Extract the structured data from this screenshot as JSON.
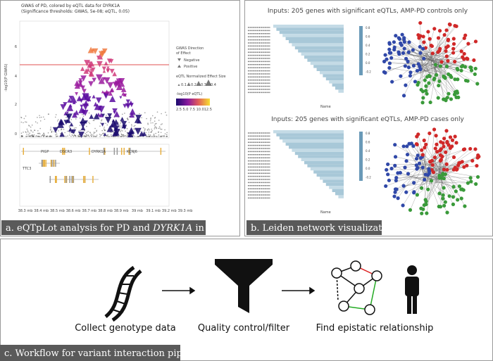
{
  "panel_a": {
    "title": "GWAS of PD, colored by eQTL data for DYRK1A",
    "subtitle": "(Significance thresholds: GWAS, 5e-08; eQTL, 0.05)",
    "y_axis_label": "-log10(P GWAS)",
    "y_ticks": [
      "0",
      "2",
      "4",
      "6"
    ],
    "legend_direction_title": [
      "GWAS Direction",
      "of Effect"
    ],
    "legend_direction_items": [
      "Negative",
      "Positive"
    ],
    "legend_size_title": "eQTL Normalized Effect Size",
    "legend_size_items": [
      "0.1",
      "0.2",
      "0.3",
      "0.4"
    ],
    "legend_color_title": "-log10(P eQTL)",
    "legend_color_ticks": "2.5 5.0 7.5 10.012.5",
    "genes": [
      "PIGP",
      "DSCR3",
      "TTC3",
      "DYRK1A",
      "KCNJ6"
    ],
    "x_ticks": [
      "38.3 mb",
      "38.4 mb",
      "38.5 mb",
      "38.6 mb",
      "38.7 mb",
      "38.8 mb",
      "38.9 mb",
      "39 mb",
      "39.1 mb",
      "39.2 mb",
      "39.3 mb"
    ],
    "caption": [
      "a. eQTpLot analysis for PD and ",
      "DYRK1A",
      " in brain"
    ]
  },
  "panel_b": {
    "top_title": "Inputs: 205 genes with significant eQTLs, AMP-PD controls only",
    "bottom_title": "Inputs: 205 genes with significant eQTLs, AMP-PD cases only",
    "axis_label": "Name",
    "colorbar_ticks": [
      "0.8",
      "0.6",
      "0.4",
      "0.2",
      "0.0",
      "-0.2"
    ],
    "caption": "b. Leiden network visualizations"
  },
  "panel_c": {
    "steps": [
      "Collect genotype data",
      "Quality control/filter",
      "Find epistatic relationship"
    ],
    "caption": "c. Workflow for variant interaction pipeline"
  }
}
